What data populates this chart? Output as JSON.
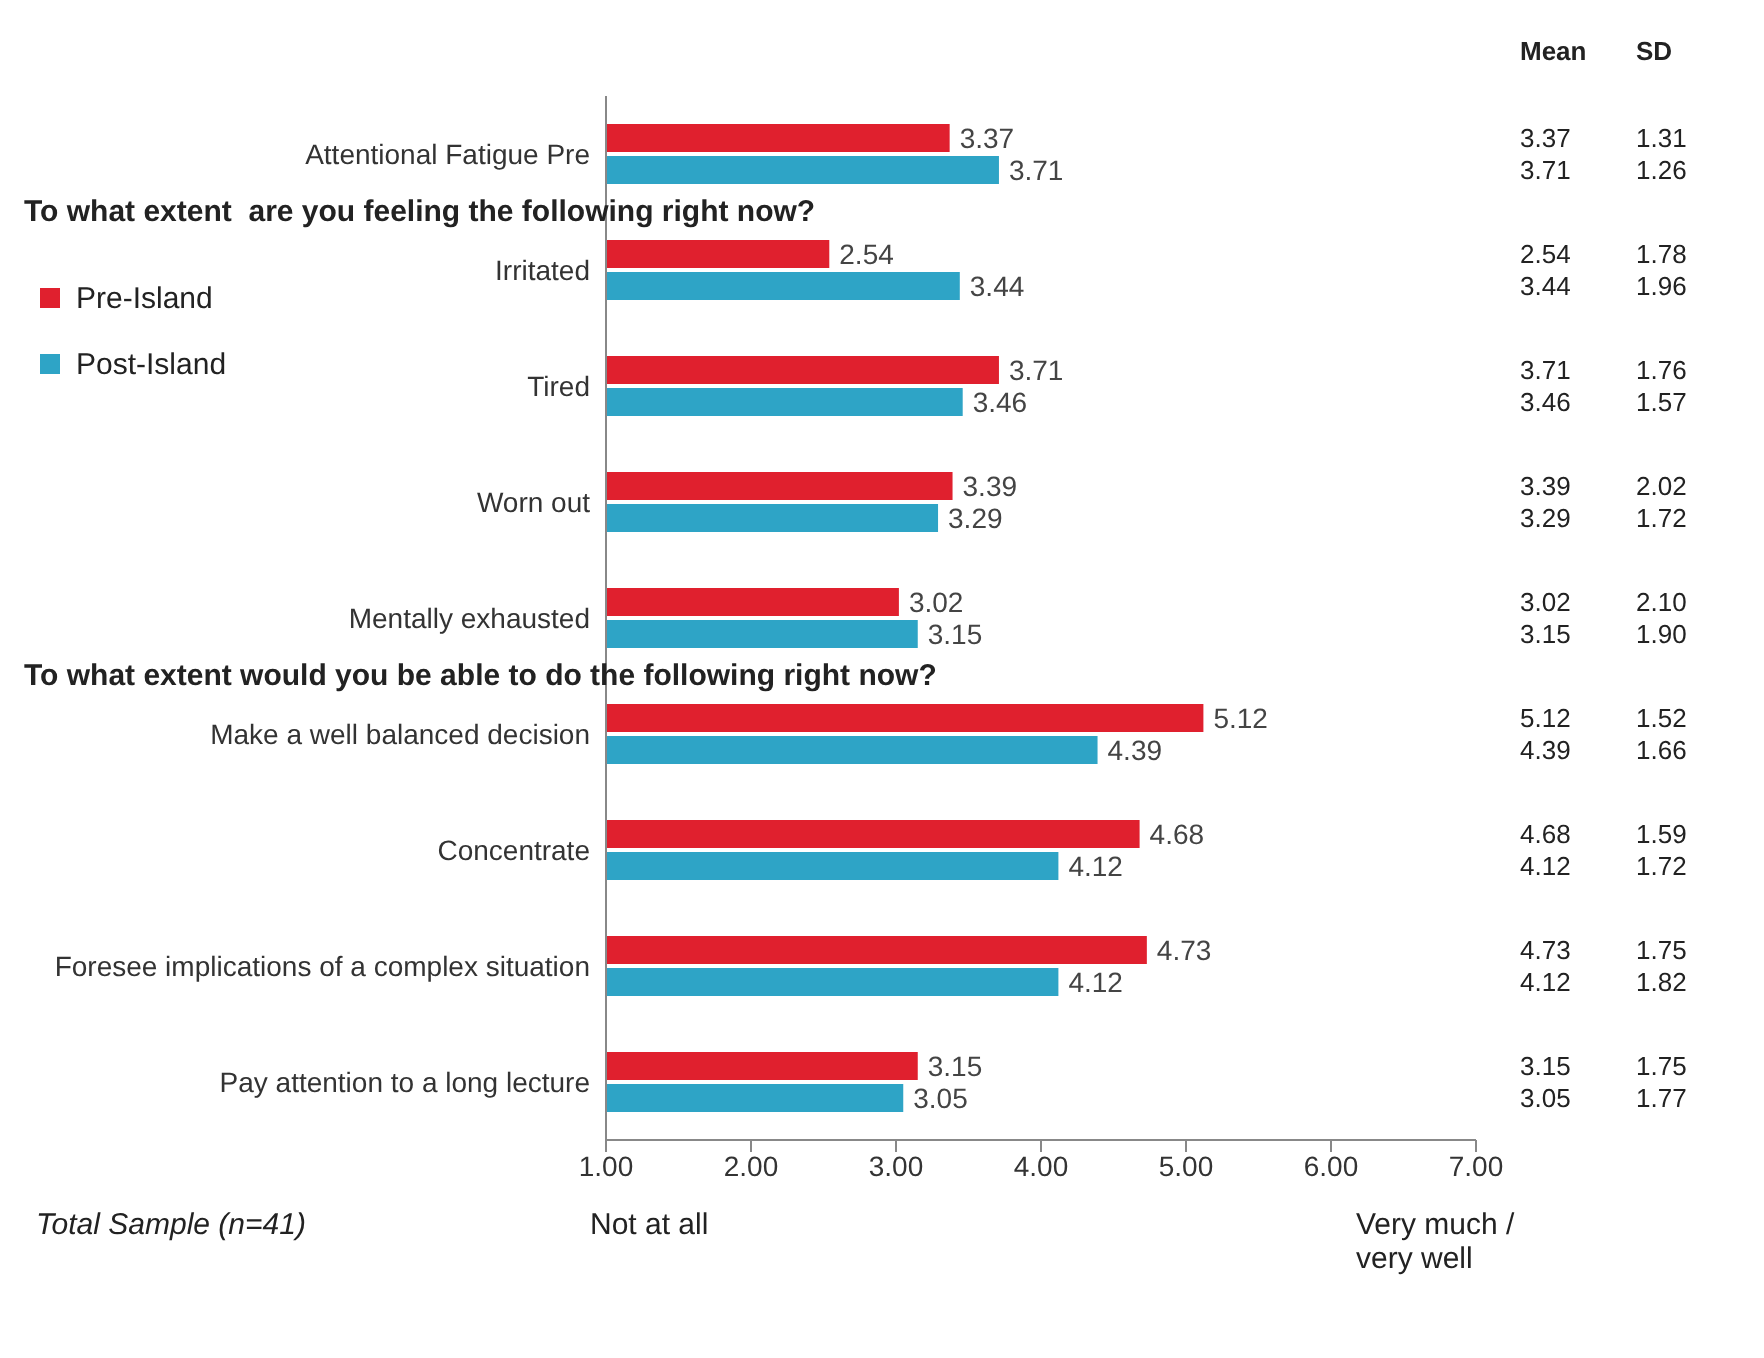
{
  "chart_data": {
    "type": "bar",
    "orientation": "horizontal",
    "categories": [
      "Attentional Fatigue Pre",
      "Irritated",
      "Tired",
      "Worn out",
      "Mentally exhausted",
      "Make a well balanced decision",
      "Concentrate",
      "Foresee implications of a complex situation",
      "Pay attention to a long lecture"
    ],
    "series": [
      {
        "name": "Pre-Island",
        "color": "#e0202e",
        "values": [
          3.37,
          2.54,
          3.71,
          3.39,
          3.02,
          5.12,
          4.68,
          4.73,
          3.15
        ]
      },
      {
        "name": "Post-Island",
        "color": "#2ea4c6",
        "values": [
          3.71,
          3.44,
          3.46,
          3.29,
          3.15,
          4.39,
          4.12,
          4.12,
          3.05
        ]
      }
    ],
    "xlim": [
      1,
      7
    ],
    "xticks": [
      {
        "value": 1,
        "label": "1.00"
      },
      {
        "value": 2,
        "label": "2.00"
      },
      {
        "value": 3,
        "label": "3.00"
      },
      {
        "value": 4,
        "label": "4.00"
      },
      {
        "value": 5,
        "label": "5.00"
      },
      {
        "value": 6,
        "label": "6.00"
      },
      {
        "value": 7,
        "label": "7.00"
      }
    ],
    "data_labels": true,
    "legend": "left",
    "annotations": [
      "To what extent  are you feeling the following right now?",
      "To what extent would you be able to do the following right now?",
      "Mean",
      "SD",
      "Total Sample (n=41)",
      "Not at all",
      "Very much / very well",
      "3.37",
      "3.71",
      "2.54",
      "3.44",
      "3.71",
      "3.46",
      "3.39",
      "3.29",
      "3.02",
      "3.15",
      "5.12",
      "4.39",
      "4.68",
      "4.12",
      "4.73",
      "4.12",
      "3.15",
      "3.05",
      "1.31",
      "1.26",
      "1.78",
      "1.96",
      "1.76",
      "1.57",
      "2.02",
      "1.72",
      "2.10",
      "1.90",
      "1.52",
      "1.66",
      "1.59",
      "1.72",
      "1.75",
      "1.82",
      "1.75",
      "1.77"
    ]
  }
}
